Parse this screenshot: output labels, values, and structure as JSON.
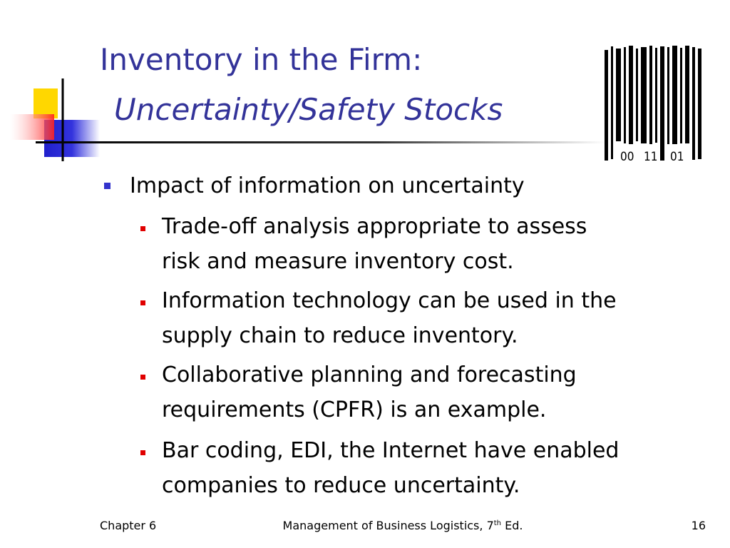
{
  "slide": {
    "title": {
      "line1": "Inventory in the Firm:",
      "line2": "Uncertainty/Safety Stocks"
    },
    "barcode_digits": [
      "00",
      "11",
      "01"
    ],
    "bullets": [
      {
        "text": "Impact of information on uncertainty",
        "sub": [
          [
            "Trade-off analysis appropriate to assess",
            "risk and measure inventory cost."
          ],
          [
            "Information technology can be used in the",
            "supply chain to reduce inventory."
          ],
          [
            "Collaborative planning and forecasting",
            "requirements (CPFR) is an example."
          ],
          [
            "Bar coding, EDI, the Internet have enabled",
            "companies to reduce uncertainty."
          ]
        ]
      }
    ],
    "footer": {
      "left": "Chapter 6",
      "center": "Management of Business Logistics, 7",
      "center_sup": "th",
      "center_end": " Ed.",
      "right": "16"
    }
  }
}
